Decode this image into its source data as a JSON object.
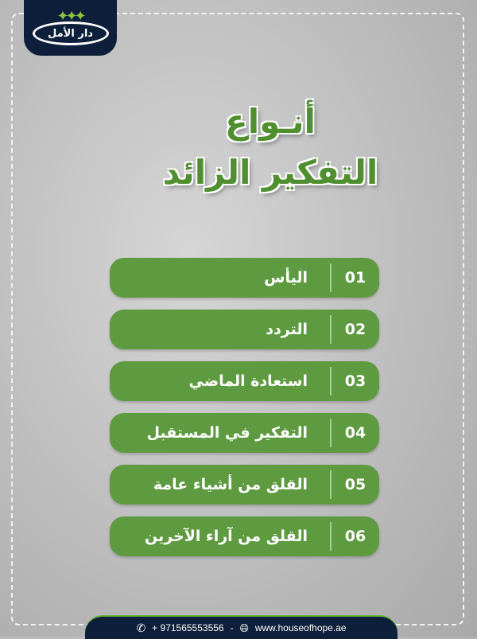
{
  "logo": {
    "text": "دار الأمل"
  },
  "title": {
    "line1": "أنـواع",
    "line2": "التفكير الزائد"
  },
  "accent": "#5e9a3f",
  "items": [
    {
      "num": "01",
      "label": "اليأس"
    },
    {
      "num": "02",
      "label": "التردد"
    },
    {
      "num": "03",
      "label": "استعادة الماضي"
    },
    {
      "num": "04",
      "label": "التفكير في المستقبل"
    },
    {
      "num": "05",
      "label": "القلق من أشياء عامة"
    },
    {
      "num": "06",
      "label": "القلق من آراء الآخرين"
    }
  ],
  "footer": {
    "phone": "+ 971565553556",
    "separator": "-",
    "website": "www.houseofhope.ae"
  }
}
